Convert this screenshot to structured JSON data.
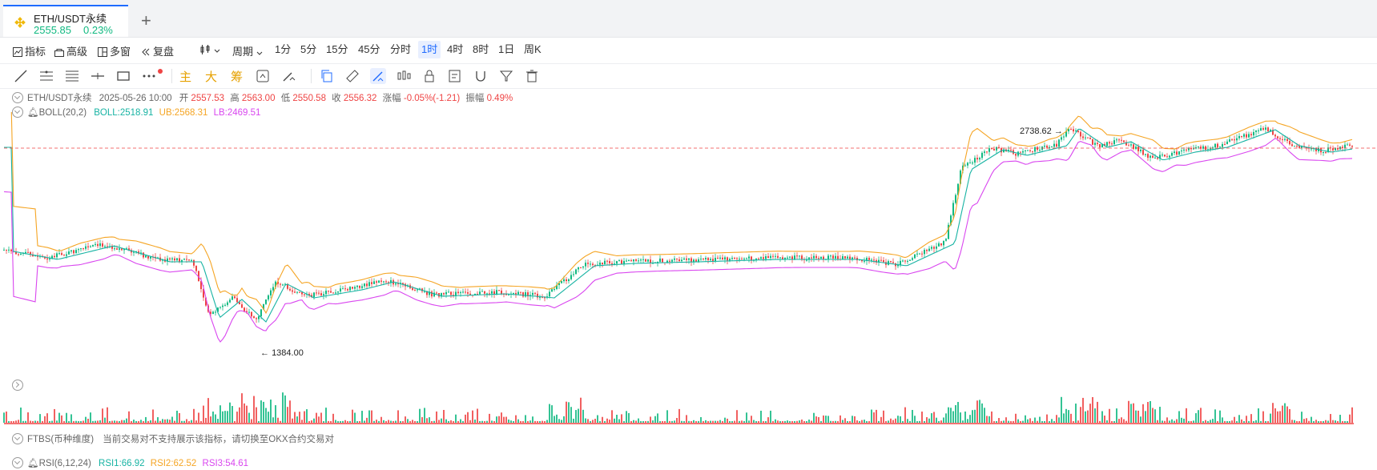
{
  "tab": {
    "symbol": "ETH/USDT永续",
    "price": "2555.85",
    "change": "0.23%",
    "add_label": "+"
  },
  "toolbar": {
    "indicators": "指标",
    "advanced": "高级",
    "multiwin": "多窗",
    "replay": "复盘",
    "period": "周期",
    "periods": [
      "1分",
      "5分",
      "15分",
      "45分",
      "分时",
      "1时",
      "4时",
      "8时",
      "1日",
      "周K"
    ],
    "active_period": "1时"
  },
  "drawbar": {
    "main": "主",
    "big": "大",
    "chips": "筹"
  },
  "ohlc": {
    "symbol": "ETH/USDT永续",
    "datetime": "2025-05-26 10:00",
    "open_label": "开",
    "open": "2557.53",
    "high_label": "高",
    "high": "2563.00",
    "low_label": "低",
    "low": "2550.58",
    "close_label": "收",
    "close": "2556.32",
    "change_label": "涨幅",
    "change": "-0.05%(-1.21)",
    "amp_label": "振幅",
    "amp": "0.49%"
  },
  "boll": {
    "name": "BOLL(20,2)",
    "mid": "BOLL:2518.91",
    "ub": "UB:2568.31",
    "lb": "LB:2469.51"
  },
  "annotations": {
    "high": "2738.62",
    "low": "1384.00"
  },
  "ftbs": {
    "name": "FTBS(币种维度)",
    "message": "当前交易对不支持展示该指标，请切换至OKX合约交易对"
  },
  "rsi": {
    "name": "RSI(6,12,24)",
    "rsi1": "RSI1:66.92",
    "rsi2": "RSI2:62.52",
    "rsi3": "RSI3:54.61"
  },
  "colors": {
    "up": "#10b981",
    "down": "#ef4444",
    "boll_mid": "#17b3a3",
    "boll_ub": "#f5a524",
    "boll_lb": "#d946ef",
    "accent": "#1f6bff"
  }
}
